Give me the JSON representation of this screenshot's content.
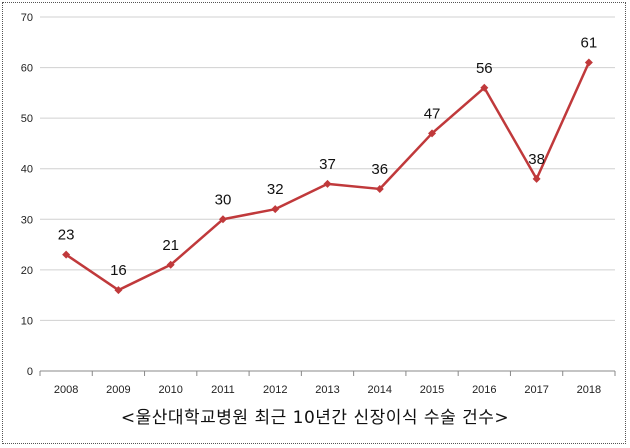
{
  "chart_data": {
    "type": "line",
    "categories": [
      "2008",
      "2009",
      "2010",
      "2011",
      "2012",
      "2013",
      "2014",
      "2015",
      "2016",
      "2017",
      "2018"
    ],
    "series": [
      {
        "values": [
          23,
          16,
          21,
          30,
          32,
          37,
          36,
          47,
          56,
          38,
          61
        ]
      }
    ],
    "data_labels": [
      "23",
      "16",
      "21",
      "30",
      "32",
      "37",
      "36",
      "47",
      "56",
      "38",
      "61"
    ],
    "y_ticks": [
      "0",
      "10",
      "20",
      "30",
      "40",
      "50",
      "60",
      "70"
    ],
    "ylim": [
      0,
      70
    ],
    "grid": true,
    "line_color": "#c0393b",
    "marker": "diamond",
    "caption": "<울산대학교병원 최근 10년간 신장이식 수술 건수>"
  }
}
